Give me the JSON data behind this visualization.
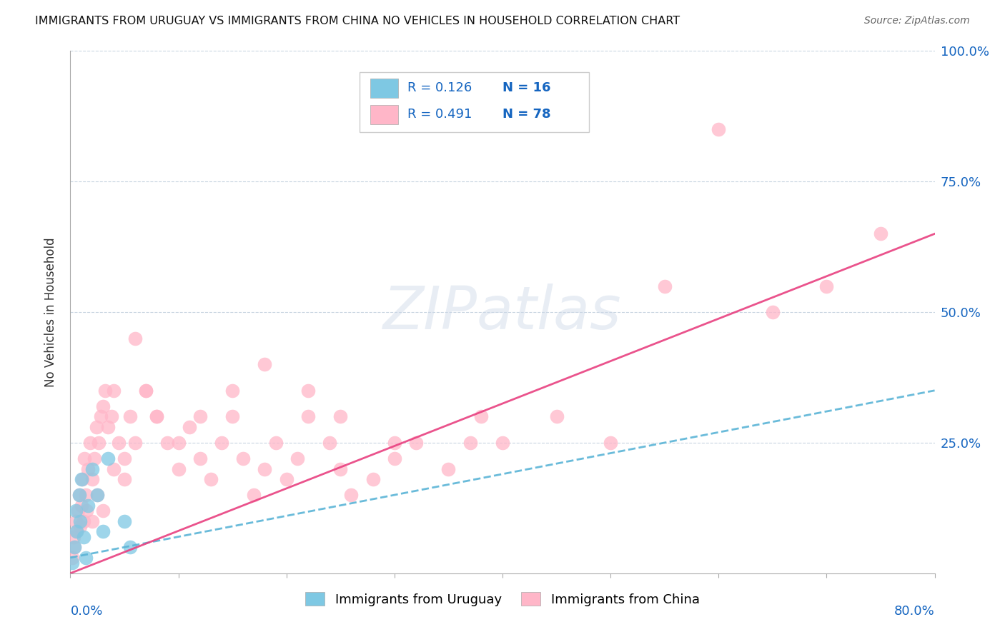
{
  "title": "IMMIGRANTS FROM URUGUAY VS IMMIGRANTS FROM CHINA NO VEHICLES IN HOUSEHOLD CORRELATION CHART",
  "source": "Source: ZipAtlas.com",
  "ylabel": "No Vehicles in Household",
  "watermark": "ZIPatlas",
  "legend_r_uruguay": "R = 0.126",
  "legend_n_uruguay": "N = 16",
  "legend_r_china": "R = 0.491",
  "legend_n_china": "N = 78",
  "color_uruguay": "#7ec8e3",
  "color_china": "#ffb6c8",
  "trendline_color_uruguay": "#7ec8e3",
  "trendline_color_china": "#f06292",
  "xlim": [
    0,
    80
  ],
  "ylim": [
    0,
    100
  ],
  "uruguay_x": [
    0.2,
    0.4,
    0.5,
    0.6,
    0.8,
    0.9,
    1.0,
    1.2,
    1.4,
    1.6,
    2.0,
    2.5,
    3.0,
    3.5,
    5.0,
    5.5
  ],
  "uruguay_y": [
    2,
    5,
    12,
    8,
    15,
    10,
    18,
    7,
    3,
    13,
    20,
    15,
    8,
    22,
    10,
    5
  ],
  "china_x": [
    0.2,
    0.3,
    0.4,
    0.5,
    0.6,
    0.7,
    0.8,
    0.9,
    1.0,
    1.1,
    1.2,
    1.3,
    1.4,
    1.5,
    1.6,
    1.8,
    2.0,
    2.2,
    2.4,
    2.6,
    2.8,
    3.0,
    3.2,
    3.5,
    3.8,
    4.0,
    4.5,
    5.0,
    5.5,
    6.0,
    7.0,
    8.0,
    9.0,
    10.0,
    11.0,
    12.0,
    13.0,
    14.0,
    15.0,
    16.0,
    17.0,
    18.0,
    19.0,
    20.0,
    21.0,
    22.0,
    24.0,
    25.0,
    26.0,
    28.0,
    30.0,
    32.0,
    35.0,
    37.0,
    38.0,
    40.0,
    45.0,
    50.0,
    55.0,
    60.0,
    65.0,
    70.0,
    75.0,
    2.0,
    2.5,
    3.0,
    4.0,
    5.0,
    6.0,
    7.0,
    8.0,
    10.0,
    12.0,
    15.0,
    18.0,
    22.0,
    25.0,
    30.0
  ],
  "china_y": [
    3,
    7,
    5,
    10,
    8,
    12,
    15,
    9,
    13,
    18,
    10,
    22,
    15,
    12,
    20,
    25,
    18,
    22,
    28,
    25,
    30,
    32,
    35,
    28,
    30,
    35,
    25,
    22,
    30,
    45,
    35,
    30,
    25,
    20,
    28,
    22,
    18,
    25,
    30,
    22,
    15,
    20,
    25,
    18,
    22,
    30,
    25,
    20,
    15,
    18,
    22,
    25,
    20,
    25,
    30,
    25,
    30,
    25,
    55,
    85,
    50,
    55,
    65,
    10,
    15,
    12,
    20,
    18,
    25,
    35,
    30,
    25,
    30,
    35,
    40,
    35,
    30,
    25
  ],
  "uru_trend_x0": 0,
  "uru_trend_y0": 3,
  "uru_trend_x1": 80,
  "uru_trend_y1": 35,
  "china_trend_x0": 0,
  "china_trend_y0": 0,
  "china_trend_x1": 80,
  "china_trend_y1": 65
}
